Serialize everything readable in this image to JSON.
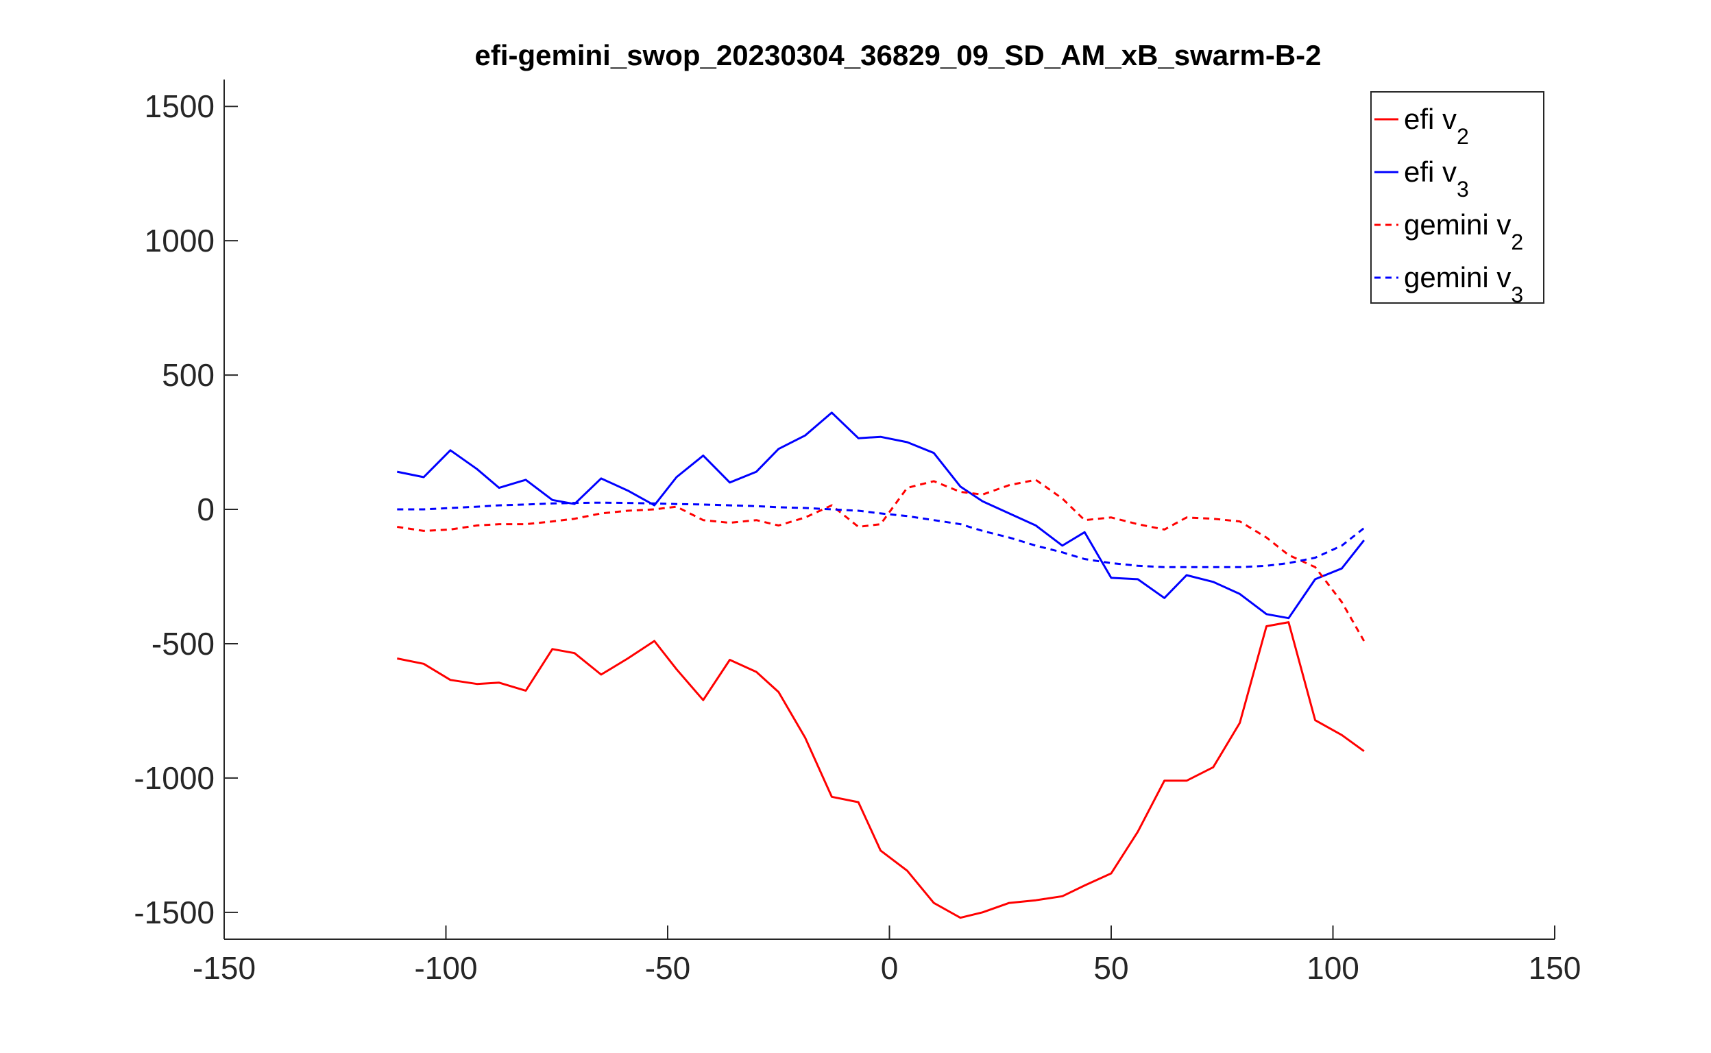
{
  "chart_data": {
    "type": "line",
    "title": "efi-gemini_swop_20230304_36829_09_SD_AM_xB_swarm-B-2",
    "xlabel": "",
    "ylabel": "",
    "xlim": [
      -150,
      150
    ],
    "ylim": [
      -1600,
      1600
    ],
    "xticks": [
      -150,
      -100,
      -50,
      0,
      50,
      100,
      150
    ],
    "yticks": [
      -1500,
      -1000,
      -500,
      0,
      500,
      1000,
      1500
    ],
    "xtick_labels": [
      "-150",
      "-100",
      "-50",
      "0",
      "50",
      "100",
      "150"
    ],
    "ytick_labels": [
      "-1500",
      "-1000",
      "-500",
      "0",
      "500",
      "1000",
      "1500"
    ],
    "grid": false,
    "legend_position": "top-right",
    "legend_box": true,
    "series": [
      {
        "name": "efi v",
        "sub": "2",
        "color": "#ff0000",
        "dash": "solid",
        "x": [
          -111,
          -105,
          -99,
          -93,
          -88,
          -82,
          -76,
          -71,
          -65,
          -59,
          -53,
          -48,
          -42,
          -36,
          -30,
          -25,
          -19,
          -13,
          -7,
          -2,
          4,
          10,
          16,
          21,
          27,
          33,
          39,
          44,
          50,
          56,
          62,
          67,
          73,
          79,
          85,
          90,
          96,
          102,
          107
        ],
        "y": [
          -555,
          -575,
          -635,
          -650,
          -645,
          -675,
          -520,
          -535,
          -615,
          -555,
          -490,
          -595,
          -710,
          -560,
          -605,
          -680,
          -850,
          -1070,
          -1090,
          -1270,
          -1345,
          -1465,
          -1520,
          -1500,
          -1465,
          -1455,
          -1440,
          -1400,
          -1355,
          -1200,
          -1010,
          -1010,
          -960,
          -795,
          -435,
          -420,
          -785,
          -840,
          -900
        ]
      },
      {
        "name": "efi v",
        "sub": "3",
        "color": "#0000ff",
        "dash": "solid",
        "x": [
          -111,
          -105,
          -99,
          -93,
          -88,
          -82,
          -76,
          -71,
          -65,
          -59,
          -53,
          -48,
          -42,
          -36,
          -30,
          -25,
          -19,
          -13,
          -7,
          -2,
          4,
          10,
          16,
          21,
          27,
          33,
          39,
          44,
          50,
          56,
          62,
          67,
          73,
          79,
          85,
          90,
          96,
          102,
          107
        ],
        "y": [
          140,
          120,
          220,
          150,
          80,
          110,
          35,
          20,
          115,
          70,
          15,
          120,
          200,
          100,
          140,
          225,
          275,
          360,
          265,
          270,
          250,
          210,
          85,
          30,
          -15,
          -60,
          -135,
          -85,
          -255,
          -260,
          -330,
          -245,
          -270,
          -315,
          -390,
          -405,
          -260,
          -220,
          -115
        ]
      },
      {
        "name": "gemini v",
        "sub": "2",
        "color": "#ff0000",
        "dash": "dashed",
        "x": [
          -111,
          -105,
          -99,
          -93,
          -88,
          -82,
          -76,
          -71,
          -65,
          -59,
          -53,
          -48,
          -42,
          -36,
          -30,
          -25,
          -19,
          -13,
          -7,
          -2,
          4,
          10,
          16,
          21,
          27,
          33,
          39,
          44,
          50,
          56,
          62,
          67,
          73,
          79,
          85,
          90,
          96,
          102,
          107
        ],
        "y": [
          -65,
          -80,
          -75,
          -60,
          -55,
          -55,
          -45,
          -35,
          -15,
          -5,
          0,
          10,
          -40,
          -50,
          -40,
          -60,
          -30,
          15,
          -65,
          -55,
          80,
          105,
          65,
          55,
          90,
          110,
          40,
          -40,
          -30,
          -55,
          -75,
          -30,
          -35,
          -45,
          -105,
          -170,
          -215,
          -345,
          -490
        ]
      },
      {
        "name": "gemini v",
        "sub": "3",
        "color": "#0000ff",
        "dash": "dashed",
        "x": [
          -111,
          -105,
          -99,
          -93,
          -88,
          -82,
          -76,
          -71,
          -65,
          -59,
          -53,
          -48,
          -42,
          -36,
          -30,
          -25,
          -19,
          -13,
          -7,
          -2,
          4,
          10,
          16,
          21,
          27,
          33,
          39,
          44,
          50,
          56,
          62,
          67,
          73,
          79,
          85,
          90,
          96,
          102,
          107
        ],
        "y": [
          0,
          0,
          5,
          10,
          15,
          18,
          22,
          24,
          25,
          24,
          22,
          20,
          18,
          15,
          12,
          8,
          5,
          0,
          -5,
          -15,
          -25,
          -40,
          -55,
          -80,
          -105,
          -135,
          -160,
          -185,
          -200,
          -210,
          -215,
          -215,
          -215,
          -215,
          -210,
          -200,
          -180,
          -135,
          -70
        ]
      }
    ]
  }
}
